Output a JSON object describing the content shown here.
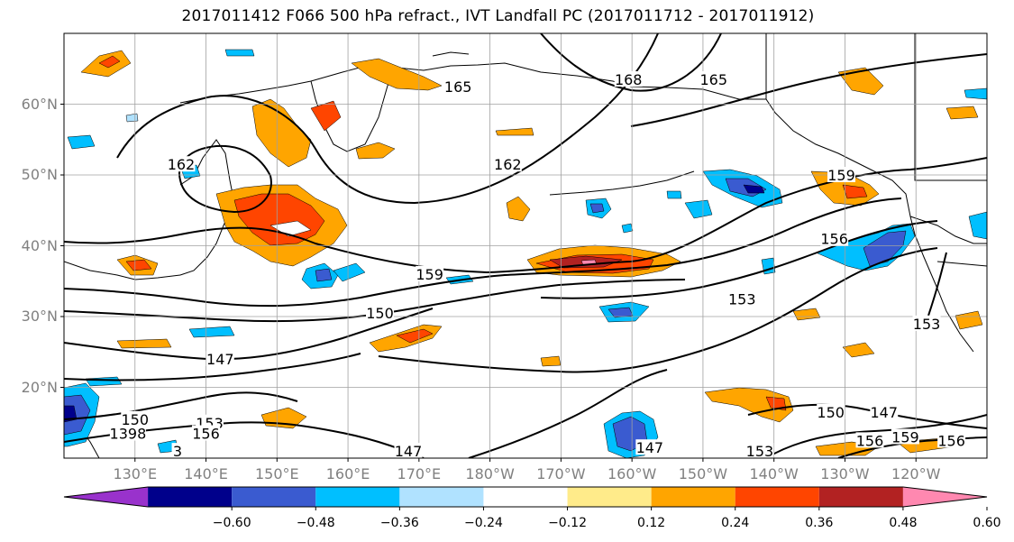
{
  "title": "2017011412 F066 500 hPa refract., IVT Landfall PC (2017011712 - 2017011912)",
  "lat_labels": [
    {
      "lat": 60,
      "text": "60°N"
    },
    {
      "lat": 50,
      "text": "50°N"
    },
    {
      "lat": 40,
      "text": "40°N"
    },
    {
      "lat": 30,
      "text": "30°N"
    },
    {
      "lat": 20,
      "text": "20°N"
    }
  ],
  "lon_labels": [
    {
      "lon": 130,
      "text": "130°E"
    },
    {
      "lon": 140,
      "text": "140°E"
    },
    {
      "lon": 150,
      "text": "150°E"
    },
    {
      "lon": 160,
      "text": "160°E"
    },
    {
      "lon": 170,
      "text": "170°E"
    },
    {
      "lon": 180,
      "text": "180°W"
    },
    {
      "lon": 190,
      "text": "170°W"
    },
    {
      "lon": 200,
      "text": "160°W"
    },
    {
      "lon": 210,
      "text": "150°W"
    },
    {
      "lon": 220,
      "text": "140°W"
    },
    {
      "lon": 230,
      "text": "130°W"
    },
    {
      "lon": 240,
      "text": "120°W"
    }
  ],
  "colorbar": {
    "colors": [
      "#9932cc",
      "#00008b",
      "#3a5bd0",
      "#00bfff",
      "#b0e2ff",
      "#ffffff",
      "#ffeb8a",
      "#ffa500",
      "#ff4500",
      "#b22222",
      "#ff88b0"
    ],
    "labels": [
      "−0.60",
      "−0.48",
      "−0.36",
      "−0.24",
      "−0.12",
      "0.12",
      "0.24",
      "0.36",
      "0.48",
      "0.60"
    ]
  },
  "contour_labels": [
    {
      "text": "165",
      "lon": 175.5,
      "lat": 62.5
    },
    {
      "text": "168",
      "lon": 199.5,
      "lat": 63.5
    },
    {
      "text": "165",
      "lon": 211.5,
      "lat": 63.5
    },
    {
      "text": "162",
      "lon": 136.5,
      "lat": 51.5
    },
    {
      "text": "162",
      "lon": 182.5,
      "lat": 51.5
    },
    {
      "text": "159",
      "lon": 229.5,
      "lat": 50.0
    },
    {
      "text": "156",
      "lon": 228.5,
      "lat": 41.0
    },
    {
      "text": "159",
      "lon": 171.5,
      "lat": 36.0
    },
    {
      "text": "150",
      "lon": 164.5,
      "lat": 30.5
    },
    {
      "text": "153",
      "lon": 215.5,
      "lat": 32.5
    },
    {
      "text": "153",
      "lon": 241.5,
      "lat": 29.0
    },
    {
      "text": "147",
      "lon": 142.0,
      "lat": 24.0
    },
    {
      "text": "150",
      "lon": 228.0,
      "lat": 16.5
    },
    {
      "text": "147",
      "lon": 235.5,
      "lat": 16.5
    },
    {
      "text": "156",
      "lon": 233.5,
      "lat": 12.5
    },
    {
      "text": "159",
      "lon": 238.5,
      "lat": 13.0
    },
    {
      "text": "156",
      "lon": 245.0,
      "lat": 12.5
    },
    {
      "text": "147",
      "lon": 168.5,
      "lat": 11.0
    },
    {
      "text": "147",
      "lon": 202.5,
      "lat": 11.5
    },
    {
      "text": "153",
      "lon": 218.0,
      "lat": 11.0
    },
    {
      "text": "150",
      "lon": 130.0,
      "lat": 15.5
    },
    {
      "text": "153",
      "lon": 140.5,
      "lat": 15.0
    },
    {
      "text": "156",
      "lon": 140.0,
      "lat": 13.5
    },
    {
      "text": "3",
      "lon": 136.0,
      "lat": 11.0
    },
    {
      "text": "1398",
      "lon": 129.0,
      "lat": 13.5
    }
  ]
}
